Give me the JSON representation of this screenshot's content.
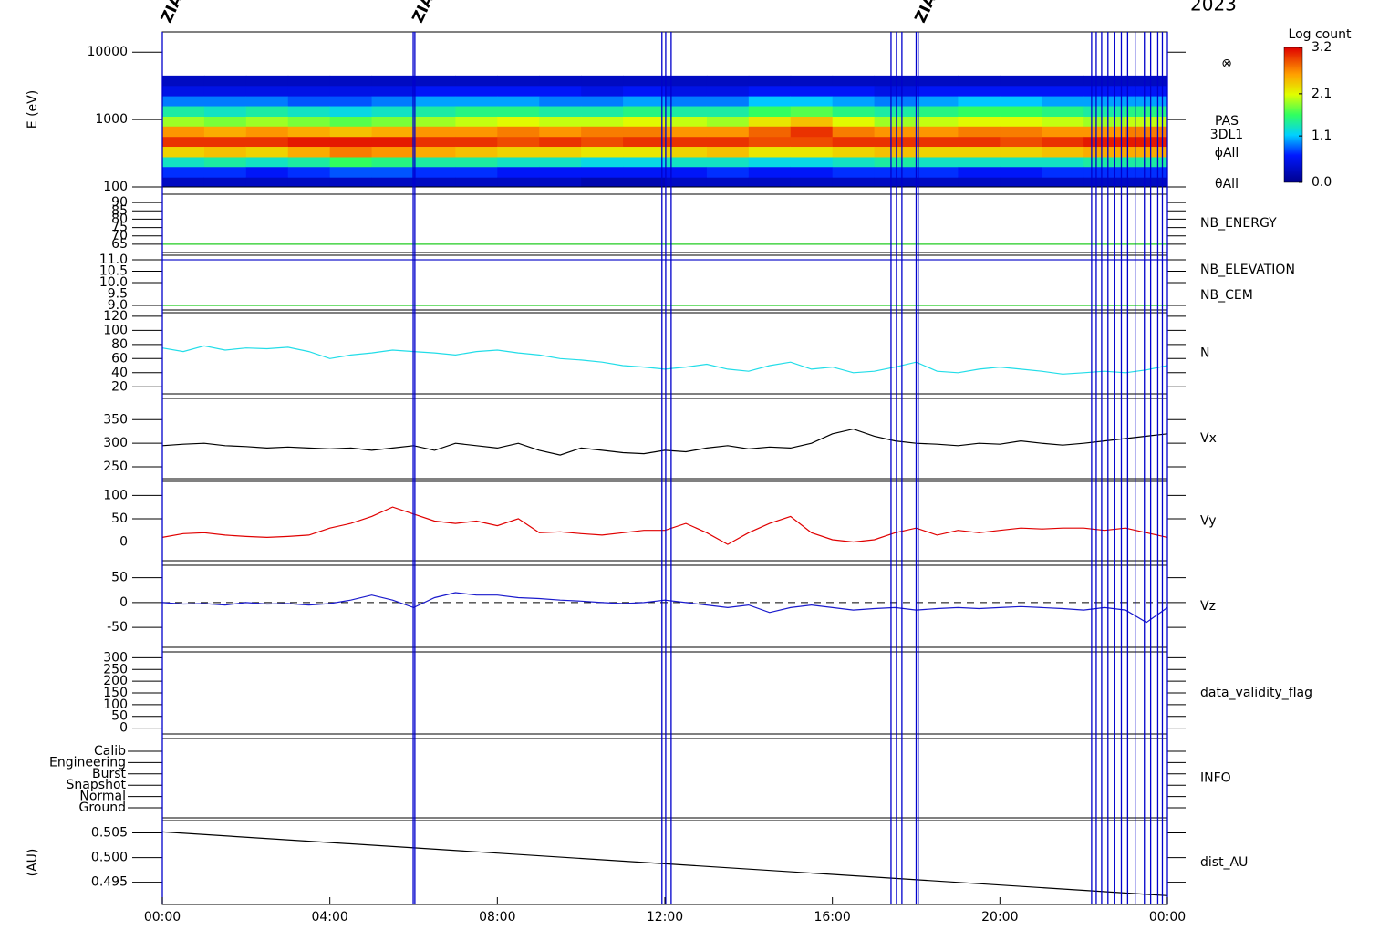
{
  "chart_data": [
    {
      "type": "heatmap",
      "title": "2023",
      "ylabel": "E (eV)",
      "ylog": true,
      "ylim": [
        100,
        20000
      ],
      "yticks": [
        100,
        1000,
        10000
      ],
      "x_bins": [
        0,
        1,
        2,
        3,
        4,
        5,
        6,
        7,
        8,
        9,
        10,
        11,
        12,
        13,
        14,
        15,
        16,
        17,
        18,
        19,
        20,
        21,
        22,
        23,
        24
      ],
      "y_bins": [
        100,
        140,
        200,
        280,
        400,
        560,
        800,
        1120,
        1600,
        2250,
        3200,
        4500
      ],
      "z": [
        [
          0.3,
          0.7,
          1.3,
          2.3,
          3.0,
          2.6,
          1.9,
          1.4,
          0.9,
          0.5,
          0.3
        ],
        [
          0.3,
          0.7,
          1.4,
          2.4,
          3.0,
          2.5,
          1.8,
          1.3,
          0.9,
          0.5,
          0.3
        ],
        [
          0.3,
          0.6,
          1.3,
          2.3,
          3.0,
          2.6,
          1.9,
          1.4,
          0.9,
          0.5,
          0.3
        ],
        [
          0.3,
          0.7,
          1.4,
          2.5,
          3.1,
          2.5,
          1.8,
          1.3,
          0.8,
          0.5,
          0.3
        ],
        [
          0.3,
          0.8,
          1.6,
          2.7,
          3.1,
          2.4,
          1.7,
          1.2,
          0.8,
          0.5,
          0.3
        ],
        [
          0.3,
          0.8,
          1.5,
          2.6,
          3.1,
          2.5,
          1.8,
          1.3,
          0.9,
          0.5,
          0.3
        ],
        [
          0.3,
          0.7,
          1.4,
          2.5,
          3.0,
          2.6,
          1.9,
          1.4,
          1.0,
          0.6,
          0.3
        ],
        [
          0.3,
          0.7,
          1.4,
          2.4,
          3.0,
          2.6,
          2.0,
          1.5,
          1.0,
          0.6,
          0.3
        ],
        [
          0.3,
          0.6,
          1.3,
          2.3,
          2.9,
          2.7,
          2.1,
          1.5,
          1.0,
          0.6,
          0.3
        ],
        [
          0.3,
          0.6,
          1.3,
          2.3,
          3.0,
          2.6,
          2.0,
          1.4,
          0.9,
          0.6,
          0.3
        ],
        [
          0.2,
          0.6,
          1.2,
          2.2,
          2.9,
          2.7,
          2.0,
          1.4,
          0.9,
          0.5,
          0.3
        ],
        [
          0.2,
          0.6,
          1.2,
          2.2,
          3.0,
          2.7,
          2.1,
          1.5,
          1.0,
          0.6,
          0.3
        ],
        [
          0.3,
          0.6,
          1.3,
          2.3,
          3.0,
          2.6,
          2.0,
          1.4,
          0.9,
          0.5,
          0.3
        ],
        [
          0.3,
          0.7,
          1.3,
          2.4,
          3.0,
          2.6,
          1.9,
          1.4,
          0.9,
          0.5,
          0.3
        ],
        [
          0.3,
          0.6,
          1.2,
          2.2,
          2.9,
          2.8,
          2.2,
          1.6,
          1.1,
          0.6,
          0.3
        ],
        [
          0.3,
          0.6,
          1.2,
          2.2,
          2.9,
          3.0,
          2.4,
          1.7,
          1.1,
          0.6,
          0.3
        ],
        [
          0.3,
          0.7,
          1.3,
          2.3,
          3.0,
          2.7,
          2.1,
          1.5,
          1.0,
          0.6,
          0.3
        ],
        [
          0.3,
          0.7,
          1.4,
          2.4,
          3.0,
          2.6,
          1.9,
          1.4,
          0.9,
          0.5,
          0.3
        ],
        [
          0.3,
          0.7,
          1.3,
          2.3,
          3.0,
          2.6,
          2.0,
          1.5,
          1.0,
          0.6,
          0.3
        ],
        [
          0.3,
          0.6,
          1.3,
          2.3,
          3.0,
          2.7,
          2.1,
          1.6,
          1.1,
          0.6,
          0.3
        ],
        [
          0.3,
          0.6,
          1.3,
          2.3,
          2.9,
          2.7,
          2.1,
          1.6,
          1.1,
          0.6,
          0.3
        ],
        [
          0.3,
          0.7,
          1.3,
          2.4,
          3.0,
          2.6,
          2.0,
          1.5,
          1.0,
          0.6,
          0.3
        ],
        [
          0.3,
          0.7,
          1.4,
          2.5,
          3.1,
          2.6,
          1.9,
          1.4,
          1.0,
          0.6,
          0.3
        ],
        [
          0.3,
          0.7,
          1.4,
          2.5,
          3.1,
          2.7,
          2.0,
          1.5,
          1.0,
          0.6,
          0.3
        ]
      ],
      "clim": [
        0,
        3.2
      ],
      "colorbar_title": "Log count",
      "colorbar_ticks": [
        {
          "value": 0,
          "label": "0.0"
        },
        1.1,
        2.1,
        3.2
      ],
      "side_labels": [
        "⊗",
        "PAS",
        "3DL1",
        "ϕAll",
        "θAll"
      ],
      "events": [
        0,
        5.99,
        6.03,
        11.93,
        12.02,
        12.15,
        17.4,
        17.53,
        17.66,
        18.0,
        18.05,
        22.19,
        22.3,
        22.43,
        22.58,
        22.73,
        22.9,
        23.05,
        23.23,
        23.45,
        23.6,
        23.77,
        23.88,
        24
      ],
      "event_labels": [
        {
          "time": 0,
          "text": "ZIAS"
        },
        {
          "time": 6,
          "text": "ZIAS"
        },
        {
          "time": 18,
          "text": "ZIAS"
        }
      ]
    },
    {
      "type": "line",
      "ylim": [
        60,
        95
      ],
      "yticks": [
        65,
        70,
        75,
        80,
        85,
        90
      ],
      "x": [
        0,
        24
      ],
      "series": [
        {
          "name": "NB_ENERGY",
          "color": "#22cc22",
          "values": [
            65,
            65
          ]
        }
      ]
    },
    {
      "type": "line",
      "ylim": [
        8.8,
        11.2
      ],
      "yticks": [
        {
          "value": 9,
          "label": "9.0"
        },
        9.5,
        {
          "value": 10,
          "label": "10.0"
        },
        10.5,
        {
          "value": 11,
          "label": "11.0"
        }
      ],
      "x": [
        0,
        24
      ],
      "series": [
        {
          "name": "NB_ELEVATION",
          "color": "#22cc22",
          "values": [
            9,
            9
          ]
        },
        {
          "name": "NB_CEM",
          "color": "#1a1acc",
          "values": [
            11,
            11
          ]
        }
      ]
    },
    {
      "type": "line",
      "ylim": [
        10,
        125
      ],
      "yticks": [
        20,
        40,
        60,
        80,
        100,
        120
      ],
      "x": [
        0,
        0.5,
        1,
        1.5,
        2,
        2.5,
        3,
        3.5,
        4,
        4.5,
        5,
        5.5,
        6,
        6.5,
        7,
        7.5,
        8,
        8.5,
        9,
        9.5,
        10,
        10.5,
        11,
        11.5,
        12,
        12.5,
        13,
        13.5,
        14,
        14.5,
        15,
        15.5,
        16,
        16.5,
        17,
        17.5,
        18,
        18.5,
        19,
        19.5,
        20,
        20.5,
        21,
        21.5,
        22,
        22.5,
        23,
        23.5,
        24
      ],
      "series": [
        {
          "name": "N",
          "color": "#22dde8",
          "values": [
            75,
            70,
            78,
            72,
            75,
            74,
            76,
            70,
            60,
            65,
            68,
            72,
            70,
            68,
            65,
            70,
            72,
            68,
            65,
            60,
            58,
            55,
            50,
            48,
            45,
            48,
            52,
            45,
            42,
            50,
            55,
            45,
            48,
            40,
            42,
            48,
            55,
            42,
            40,
            45,
            48,
            45,
            42,
            38,
            40,
            42,
            40,
            44,
            50
          ]
        }
      ]
    },
    {
      "type": "line",
      "ylim": [
        225,
        395
      ],
      "yticks": [
        250,
        300,
        350
      ],
      "x": [
        0,
        0.5,
        1,
        1.5,
        2,
        2.5,
        3,
        3.5,
        4,
        4.5,
        5,
        5.5,
        6,
        6.5,
        7,
        7.5,
        8,
        8.5,
        9,
        9.5,
        10,
        10.5,
        11,
        11.5,
        12,
        12.5,
        13,
        13.5,
        14,
        14.5,
        15,
        15.5,
        16,
        16.5,
        17,
        17.5,
        18,
        18.5,
        19,
        19.5,
        20,
        20.5,
        21,
        21.5,
        22,
        22.5,
        23,
        23.5,
        24
      ],
      "series": [
        {
          "name": "Vx",
          "color": "#000000",
          "values": [
            295,
            298,
            300,
            295,
            293,
            290,
            292,
            290,
            288,
            290,
            285,
            290,
            295,
            285,
            300,
            295,
            290,
            300,
            285,
            275,
            290,
            285,
            280,
            278,
            285,
            282,
            290,
            295,
            288,
            292,
            290,
            300,
            320,
            330,
            315,
            305,
            300,
            298,
            295,
            300,
            298,
            305,
            300,
            296,
            300,
            305,
            310,
            315,
            320
          ]
        }
      ]
    },
    {
      "type": "line",
      "ylim": [
        -40,
        130
      ],
      "yticks": [
        0,
        50,
        100
      ],
      "zero_line": true,
      "x": [
        0,
        0.5,
        1,
        1.5,
        2,
        2.5,
        3,
        3.5,
        4,
        4.5,
        5,
        5.5,
        6,
        6.5,
        7,
        7.5,
        8,
        8.5,
        9,
        9.5,
        10,
        10.5,
        11,
        11.5,
        12,
        12.5,
        13,
        13.5,
        14,
        14.5,
        15,
        15.5,
        16,
        16.5,
        17,
        17.5,
        18,
        18.5,
        19,
        19.5,
        20,
        20.5,
        21,
        21.5,
        22,
        22.5,
        23,
        23.5,
        24
      ],
      "series": [
        {
          "name": "Vy",
          "color": "#e00000",
          "values": [
            10,
            18,
            20,
            15,
            12,
            10,
            12,
            15,
            30,
            40,
            55,
            75,
            60,
            45,
            40,
            45,
            35,
            50,
            20,
            22,
            18,
            15,
            20,
            25,
            25,
            40,
            20,
            -5,
            20,
            40,
            55,
            20,
            5,
            0,
            5,
            20,
            30,
            15,
            25,
            20,
            25,
            30,
            28,
            30,
            30,
            25,
            30,
            20,
            10
          ]
        }
      ]
    },
    {
      "type": "line",
      "ylim": [
        -90,
        75
      ],
      "yticks": [
        -50,
        0,
        50
      ],
      "zero_line": true,
      "x": [
        0,
        0.5,
        1,
        1.5,
        2,
        2.5,
        3,
        3.5,
        4,
        4.5,
        5,
        5.5,
        6,
        6.5,
        7,
        7.5,
        8,
        8.5,
        9,
        9.5,
        10,
        10.5,
        11,
        11.5,
        12,
        12.5,
        13,
        13.5,
        14,
        14.5,
        15,
        15.5,
        16,
        16.5,
        17,
        17.5,
        18,
        18.5,
        19,
        19.5,
        20,
        20.5,
        21,
        21.5,
        22,
        22.5,
        23,
        23.5,
        24
      ],
      "series": [
        {
          "name": "Vz",
          "color": "#1a1acc",
          "values": [
            0,
            -3,
            -2,
            -5,
            0,
            -3,
            -2,
            -5,
            -2,
            5,
            15,
            5,
            -10,
            10,
            20,
            15,
            15,
            10,
            8,
            5,
            3,
            0,
            -2,
            0,
            5,
            0,
            -5,
            -10,
            -5,
            -20,
            -10,
            -5,
            -10,
            -15,
            -12,
            -10,
            -15,
            -12,
            -10,
            -12,
            -10,
            -8,
            -10,
            -12,
            -15,
            -10,
            -15,
            -40,
            -10
          ]
        }
      ]
    },
    {
      "type": "empty",
      "label": "data_validity_flag",
      "ylim": [
        -25,
        325
      ],
      "yticks": [
        0,
        50,
        100,
        150,
        200,
        250,
        300
      ]
    },
    {
      "type": "category",
      "label": "INFO",
      "categories": [
        "Calib",
        "Engineering",
        "Burst",
        "Snapshot",
        "Normal",
        "Ground"
      ]
    },
    {
      "type": "line",
      "ylabel": "(AU)",
      "ylim": [
        0.4905,
        0.5075
      ],
      "yticks": [
        0.495,
        {
          "value": 0.5,
          "label": "0.500"
        },
        0.505
      ],
      "x": [
        0,
        24
      ],
      "series": [
        {
          "name": "dist_AU",
          "color": "#000000",
          "values": [
            0.5052,
            0.4923
          ]
        }
      ],
      "xlim": [
        0,
        24
      ],
      "xticks": [
        {
          "value": 0,
          "label": "00:00"
        },
        {
          "value": 4,
          "label": "04:00"
        },
        {
          "value": 8,
          "label": "08:00"
        },
        {
          "value": 12,
          "label": "12:00"
        },
        {
          "value": 16,
          "label": "16:00"
        },
        {
          "value": 20,
          "label": "20:00"
        },
        {
          "value": 24,
          "label": "00:00"
        }
      ]
    }
  ]
}
